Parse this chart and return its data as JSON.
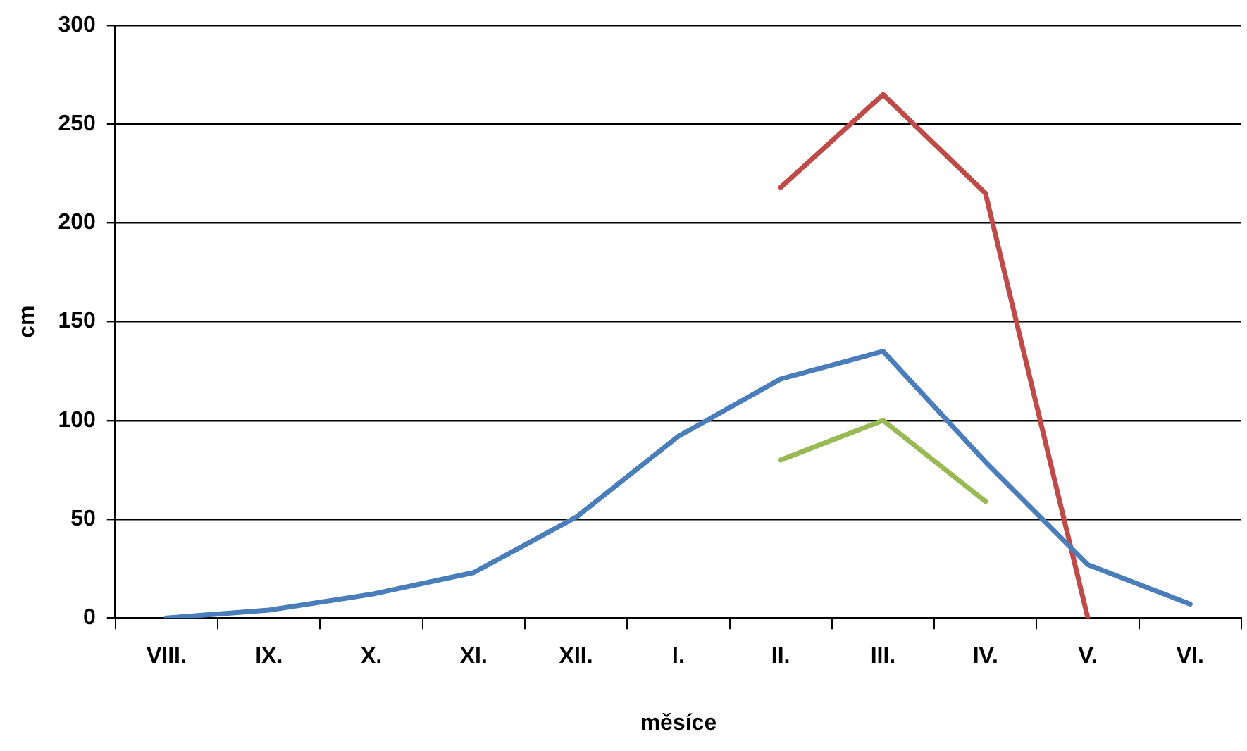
{
  "chart_data": {
    "type": "line",
    "xlabel": "měsíce",
    "ylabel": "cm",
    "categories": [
      "VIII.",
      "IX.",
      "X.",
      "XI.",
      "XII.",
      "I.",
      "II.",
      "III.",
      "IV.",
      "V.",
      "VI."
    ],
    "series": [
      {
        "color": "#4a7ebb",
        "values": [
          0,
          4,
          12,
          23,
          51,
          92,
          121,
          135,
          79,
          27,
          7
        ]
      },
      {
        "color": "#be4b48",
        "values": [
          null,
          null,
          null,
          null,
          null,
          null,
          218,
          265,
          215,
          0,
          null
        ]
      },
      {
        "color": "#98b954",
        "values": [
          null,
          null,
          null,
          null,
          null,
          null,
          80,
          100,
          59,
          null,
          null
        ]
      }
    ],
    "ylim": [
      0,
      300
    ],
    "yticks": [
      0,
      50,
      100,
      150,
      200,
      250,
      300
    ],
    "grid": "y",
    "legend": false,
    "marker": "none",
    "line_style": "solid"
  }
}
